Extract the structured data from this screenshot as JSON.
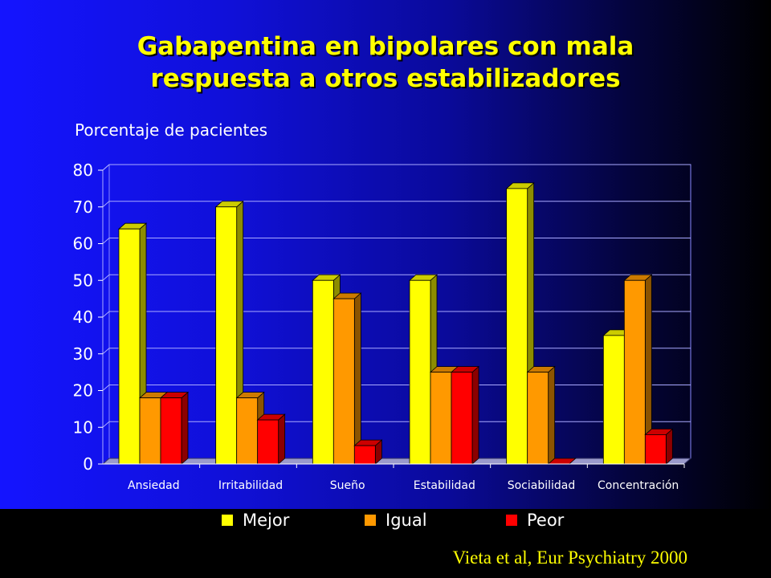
{
  "title_lines": [
    "Gabapentina en bipolares con mala",
    "respuesta a otros estabilizadores"
  ],
  "source": "Vieta et al, Eur Psychiatry 2000",
  "colors": {
    "Mejor": "#ffff00",
    "Igual": "#ff9900",
    "Peor": "#ff0000"
  },
  "chart_data": {
    "type": "bar",
    "ylabel": "Porcentaje de pacientes",
    "ylim": [
      0,
      80
    ],
    "yticks": [
      "0",
      "10",
      "20",
      "30",
      "40",
      "50",
      "60",
      "70",
      "80"
    ],
    "categories": [
      "Ansiedad",
      "Irritabilidad",
      "Sueño",
      "Estabilidad",
      "Sociabilidad",
      "Concentración"
    ],
    "series": [
      {
        "name": "Mejor",
        "values": [
          64,
          70,
          50,
          50,
          75,
          35
        ]
      },
      {
        "name": "Igual",
        "values": [
          18,
          18,
          45,
          25,
          25,
          50
        ]
      },
      {
        "name": "Peor",
        "values": [
          18,
          12,
          5,
          25,
          0,
          8
        ]
      }
    ],
    "legend": "bottom",
    "grid": true,
    "style": "3d"
  }
}
